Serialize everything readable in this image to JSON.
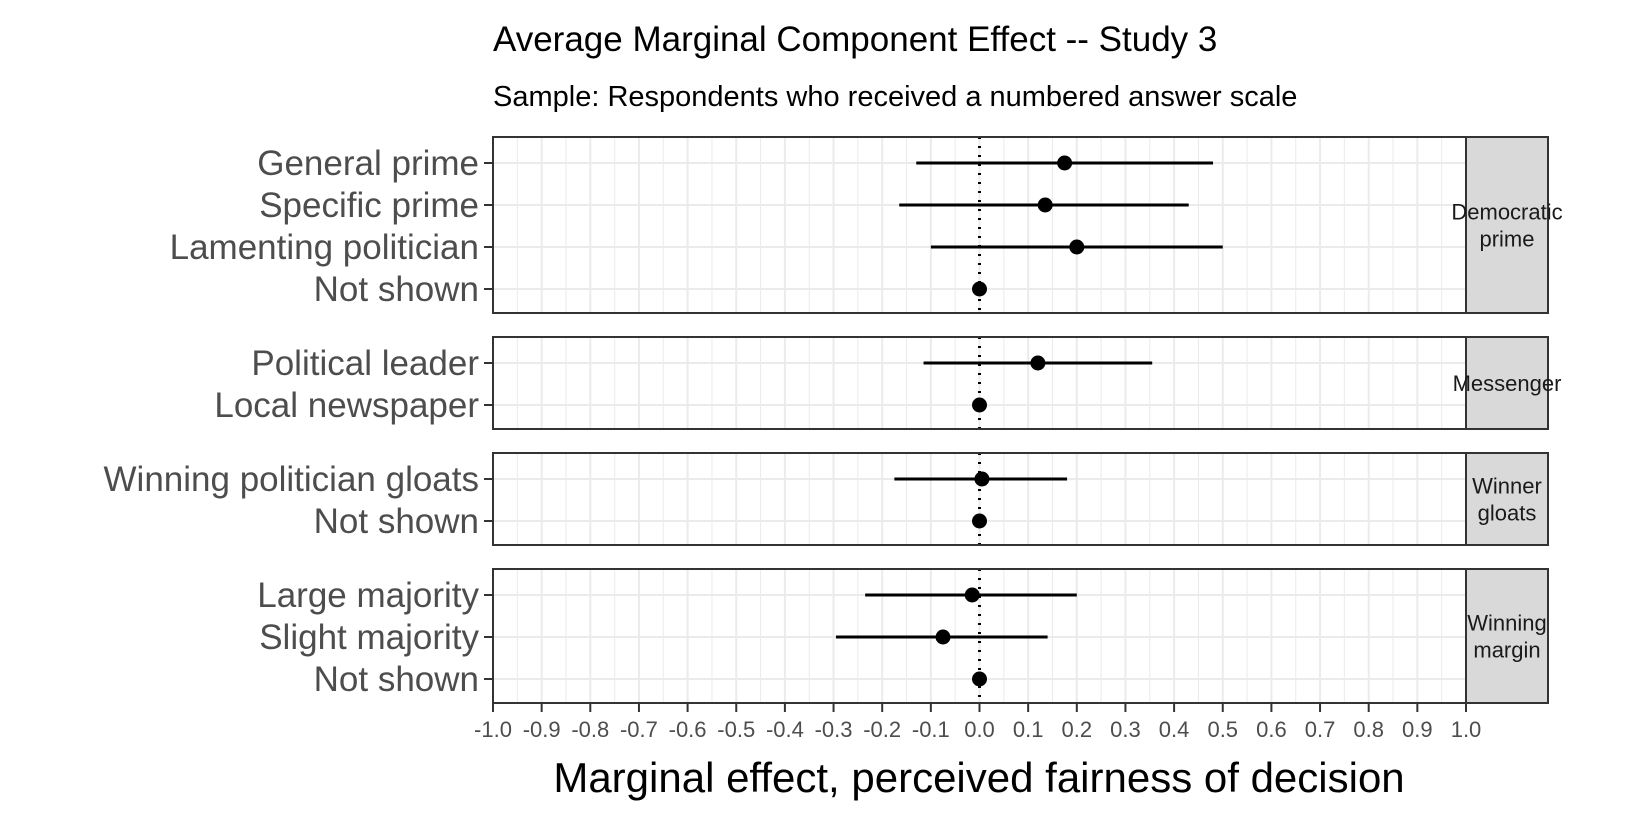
{
  "chart_data": {
    "type": "forest",
    "title": "Average Marginal Component Effect -- Study 3",
    "subtitle": "Sample: Respondents who received a numbered answer scale",
    "xlabel": "Marginal effect, perceived fairness of decision",
    "xlim": [
      -1.0,
      1.0
    ],
    "x_ticks": [
      "-1.0",
      "-0.9",
      "-0.8",
      "-0.7",
      "-0.6",
      "-0.5",
      "-0.4",
      "-0.3",
      "-0.2",
      "-0.1",
      "0.0",
      "0.1",
      "0.2",
      "0.3",
      "0.4",
      "0.5",
      "0.6",
      "0.7",
      "0.8",
      "0.9",
      "1.0"
    ],
    "reference_line": 0.0,
    "grid": true,
    "panels": [
      {
        "strip": [
          "Democratic",
          "prime"
        ],
        "rows": [
          {
            "label": "General prime",
            "estimate": 0.175,
            "lower": -0.13,
            "upper": 0.48
          },
          {
            "label": "Specific prime",
            "estimate": 0.135,
            "lower": -0.165,
            "upper": 0.43
          },
          {
            "label": "Lamenting politician",
            "estimate": 0.2,
            "lower": -0.1,
            "upper": 0.5
          },
          {
            "label": "Not shown",
            "estimate": 0.0,
            "lower": null,
            "upper": null
          }
        ]
      },
      {
        "strip": [
          "Messenger"
        ],
        "rows": [
          {
            "label": "Political leader",
            "estimate": 0.12,
            "lower": -0.115,
            "upper": 0.355
          },
          {
            "label": "Local newspaper",
            "estimate": 0.0,
            "lower": null,
            "upper": null
          }
        ]
      },
      {
        "strip": [
          "Winner",
          "gloats"
        ],
        "rows": [
          {
            "label": "Winning politician gloats",
            "estimate": 0.005,
            "lower": -0.175,
            "upper": 0.18
          },
          {
            "label": "Not shown",
            "estimate": 0.0,
            "lower": null,
            "upper": null
          }
        ]
      },
      {
        "strip": [
          "Winning",
          "margin"
        ],
        "rows": [
          {
            "label": "Large majority",
            "estimate": -0.015,
            "lower": -0.235,
            "upper": 0.2
          },
          {
            "label": "Slight majority",
            "estimate": -0.075,
            "lower": -0.295,
            "upper": 0.14
          },
          {
            "label": "Not shown",
            "estimate": 0.0,
            "lower": null,
            "upper": null
          }
        ]
      }
    ]
  }
}
